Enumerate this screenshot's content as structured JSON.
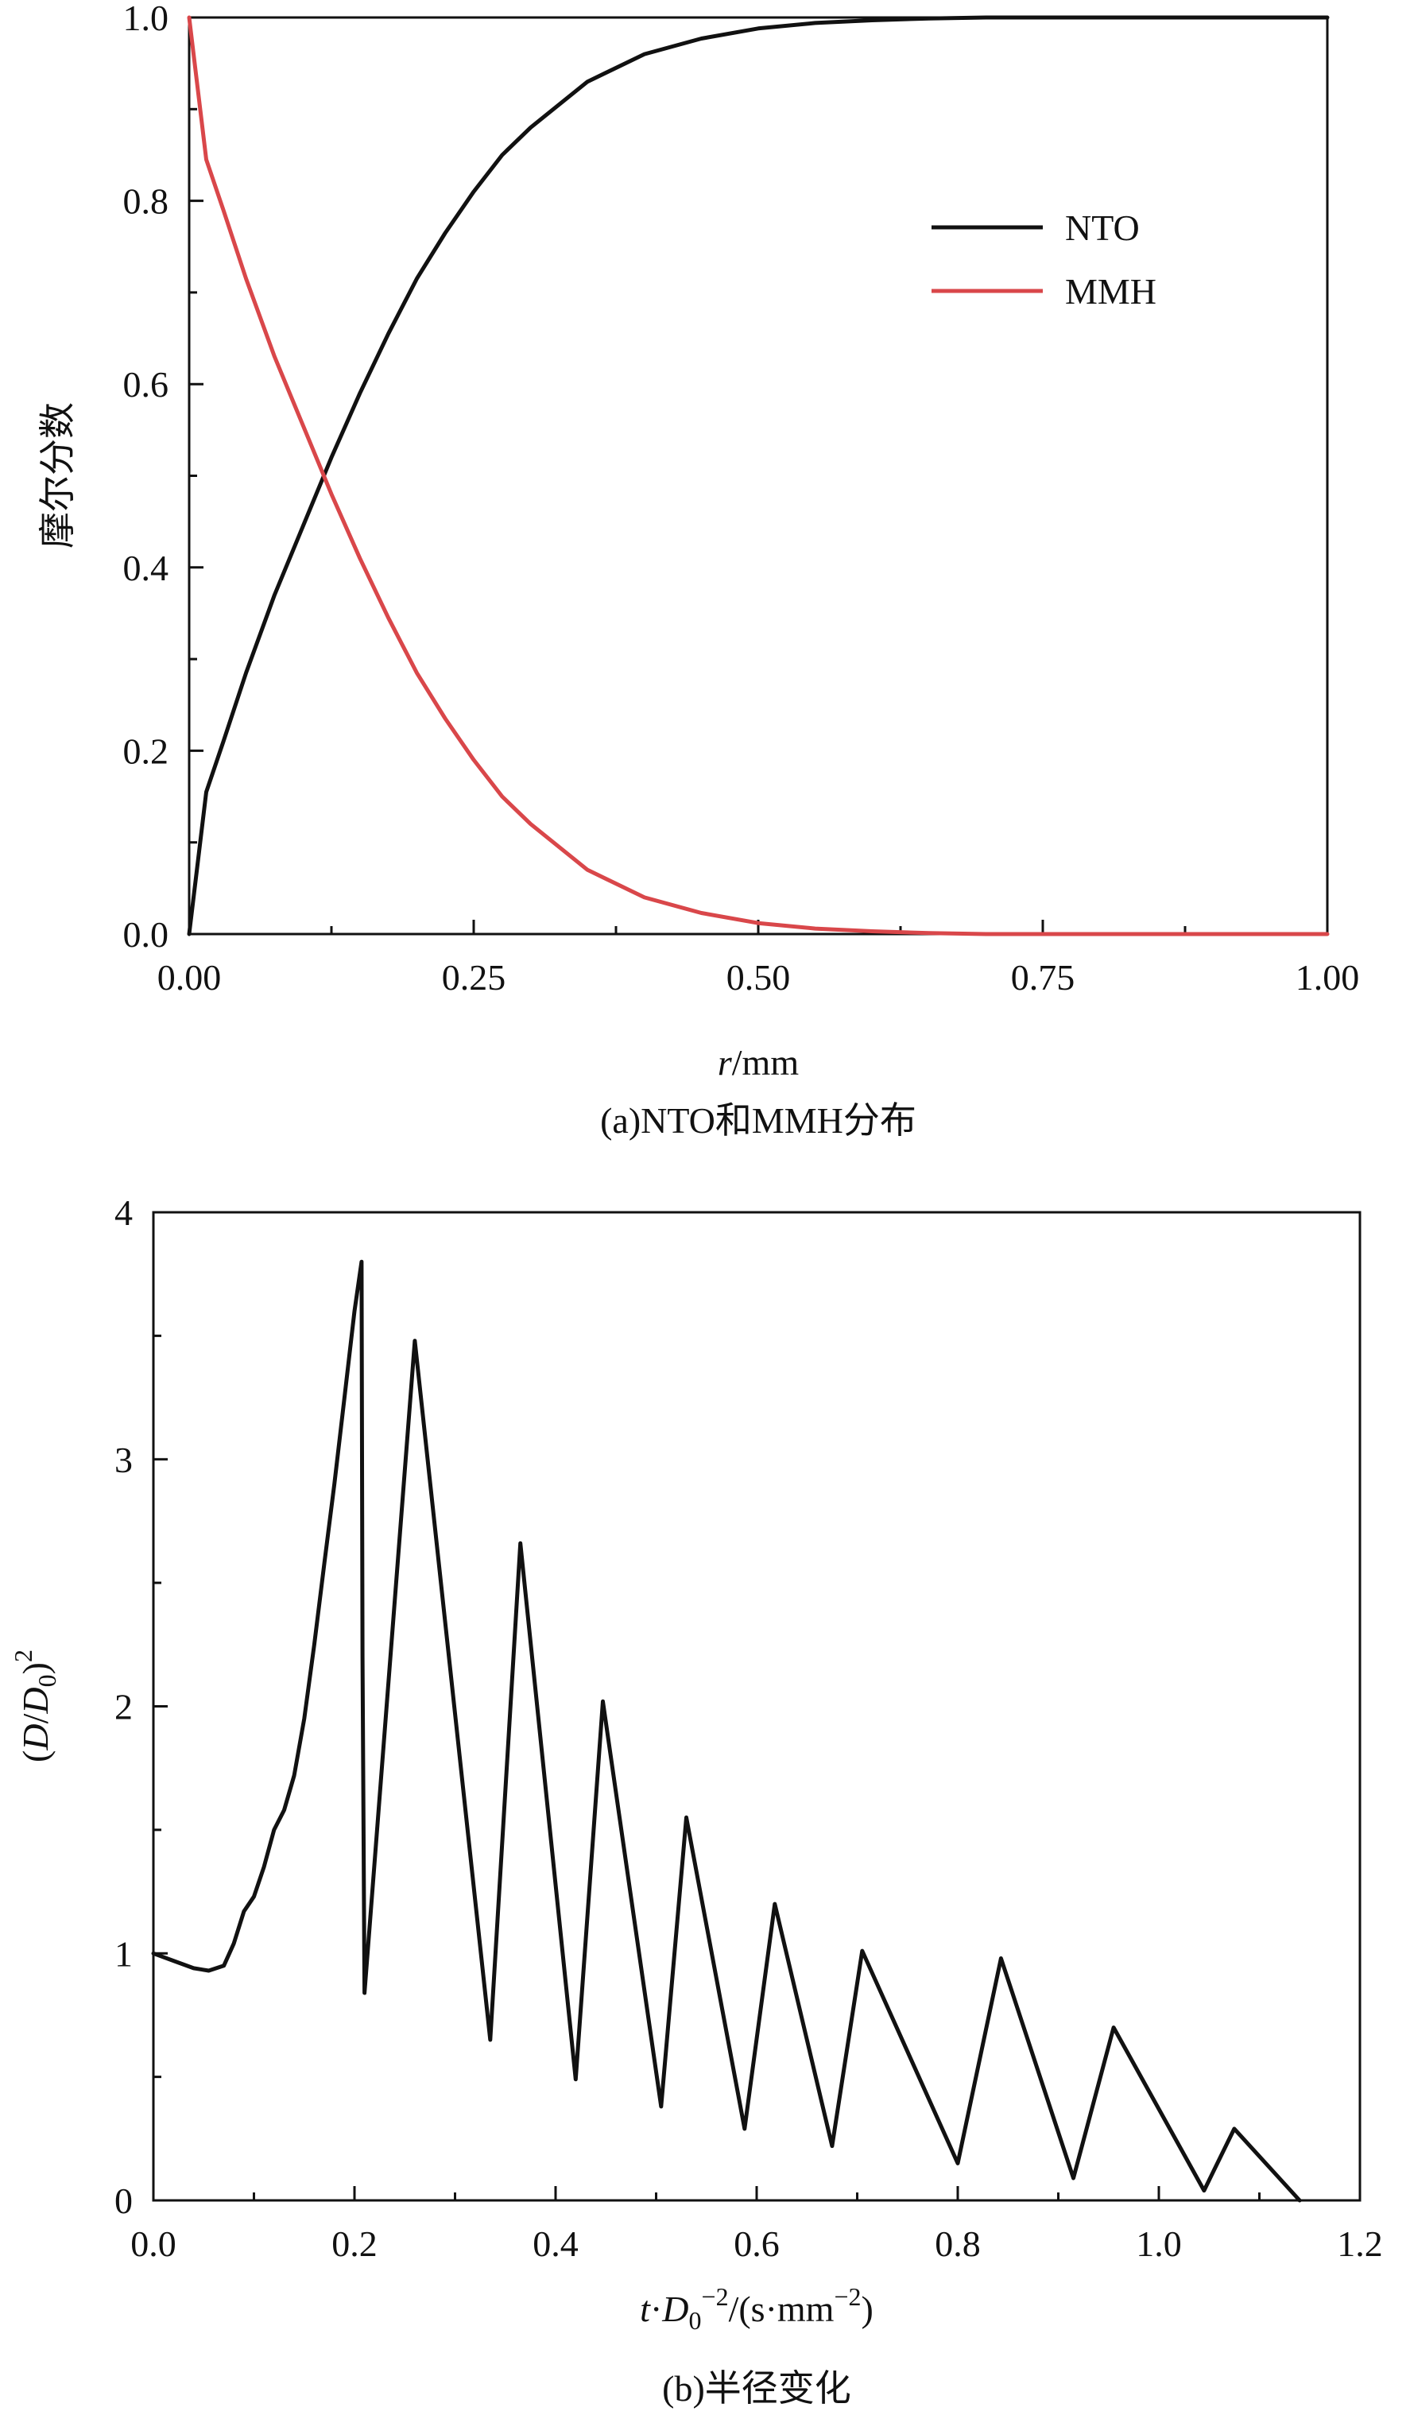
{
  "colors": {
    "nto": "#111111",
    "mmh": "#d9474a",
    "axis": "#111111"
  },
  "chart_data": [
    {
      "type": "line",
      "title": "",
      "caption": "(a)NTO和MMH分布",
      "xlabel_italic": "r",
      "xlabel_rest": "/mm",
      "ylabel": "摩尔分数",
      "xlim": [
        0,
        1.0
      ],
      "ylim": [
        0,
        1.0
      ],
      "xticks": [
        "0.00",
        "0.25",
        "0.50",
        "0.75",
        "1.00"
      ],
      "xtick_values": [
        0,
        0.25,
        0.5,
        0.75,
        1.0
      ],
      "yticks": [
        "0.0",
        "0.2",
        "0.4",
        "0.6",
        "0.8",
        "1.0"
      ],
      "ytick_values": [
        0,
        0.2,
        0.4,
        0.6,
        0.8,
        1.0
      ],
      "grid": false,
      "legend_position": "top-right",
      "series": [
        {
          "name": "NTO",
          "color": "#111111",
          "x": [
            0,
            0.015,
            0.03,
            0.05,
            0.075,
            0.1,
            0.125,
            0.15,
            0.175,
            0.2,
            0.225,
            0.25,
            0.275,
            0.3,
            0.35,
            0.4,
            0.45,
            0.5,
            0.55,
            0.6,
            0.65,
            0.7,
            0.8,
            0.9,
            1.0
          ],
          "y": [
            0,
            0.155,
            0.21,
            0.285,
            0.37,
            0.445,
            0.52,
            0.59,
            0.655,
            0.715,
            0.765,
            0.81,
            0.85,
            0.88,
            0.93,
            0.96,
            0.977,
            0.988,
            0.994,
            0.997,
            0.999,
            1.0,
            1.0,
            1.0,
            1.0
          ]
        },
        {
          "name": "MMH",
          "color": "#d9474a",
          "x": [
            0,
            0.015,
            0.03,
            0.05,
            0.075,
            0.1,
            0.125,
            0.15,
            0.175,
            0.2,
            0.225,
            0.25,
            0.275,
            0.3,
            0.35,
            0.4,
            0.45,
            0.5,
            0.55,
            0.6,
            0.65,
            0.7,
            0.8,
            0.9,
            1.0
          ],
          "y": [
            1.0,
            0.845,
            0.79,
            0.715,
            0.63,
            0.555,
            0.48,
            0.41,
            0.345,
            0.285,
            0.235,
            0.19,
            0.15,
            0.12,
            0.07,
            0.04,
            0.023,
            0.012,
            0.006,
            0.003,
            0.001,
            0.0,
            0.0,
            0.0,
            0.0
          ]
        }
      ]
    },
    {
      "type": "line",
      "title": "",
      "caption": "(b)半径变化",
      "xlabel_parts": [
        "t",
        "·",
        "D",
        "0",
        "−2",
        "/(s·mm",
        "−2",
        ")"
      ],
      "ylabel_parts": [
        "(",
        "D",
        "/",
        "D",
        "0",
        ")",
        "2"
      ],
      "xlim": [
        0,
        1.2
      ],
      "ylim": [
        0,
        4
      ],
      "xticks": [
        "0.0",
        "0.2",
        "0.4",
        "0.6",
        "0.8",
        "1.0",
        "1.2"
      ],
      "xtick_values": [
        0,
        0.2,
        0.4,
        0.6,
        0.8,
        1.0,
        1.2
      ],
      "yticks": [
        "0",
        "1",
        "2",
        "3",
        "4"
      ],
      "ytick_values": [
        0,
        1,
        2,
        3,
        4
      ],
      "grid": false,
      "series": [
        {
          "color": "#111111",
          "x": [
            0,
            0.02,
            0.04,
            0.055,
            0.07,
            0.08,
            0.09,
            0.1,
            0.11,
            0.12,
            0.13,
            0.14,
            0.15,
            0.16,
            0.17,
            0.18,
            0.19,
            0.2,
            0.207,
            0.208,
            0.21,
            0.26,
            0.335,
            0.365,
            0.42,
            0.447,
            0.505,
            0.53,
            0.588,
            0.618,
            0.675,
            0.705,
            0.8,
            0.843,
            0.915,
            0.955,
            1.045,
            1.075,
            1.14
          ],
          "y": [
            1.0,
            0.97,
            0.94,
            0.93,
            0.95,
            1.04,
            1.17,
            1.23,
            1.35,
            1.5,
            1.58,
            1.72,
            1.95,
            2.25,
            2.58,
            2.9,
            3.25,
            3.6,
            3.8,
            2.2,
            0.84,
            3.48,
            0.65,
            2.66,
            0.49,
            2.02,
            0.38,
            1.55,
            0.29,
            1.2,
            0.22,
            1.01,
            0.15,
            0.98,
            0.09,
            0.7,
            0.04,
            0.29,
            0.0
          ]
        }
      ]
    }
  ]
}
